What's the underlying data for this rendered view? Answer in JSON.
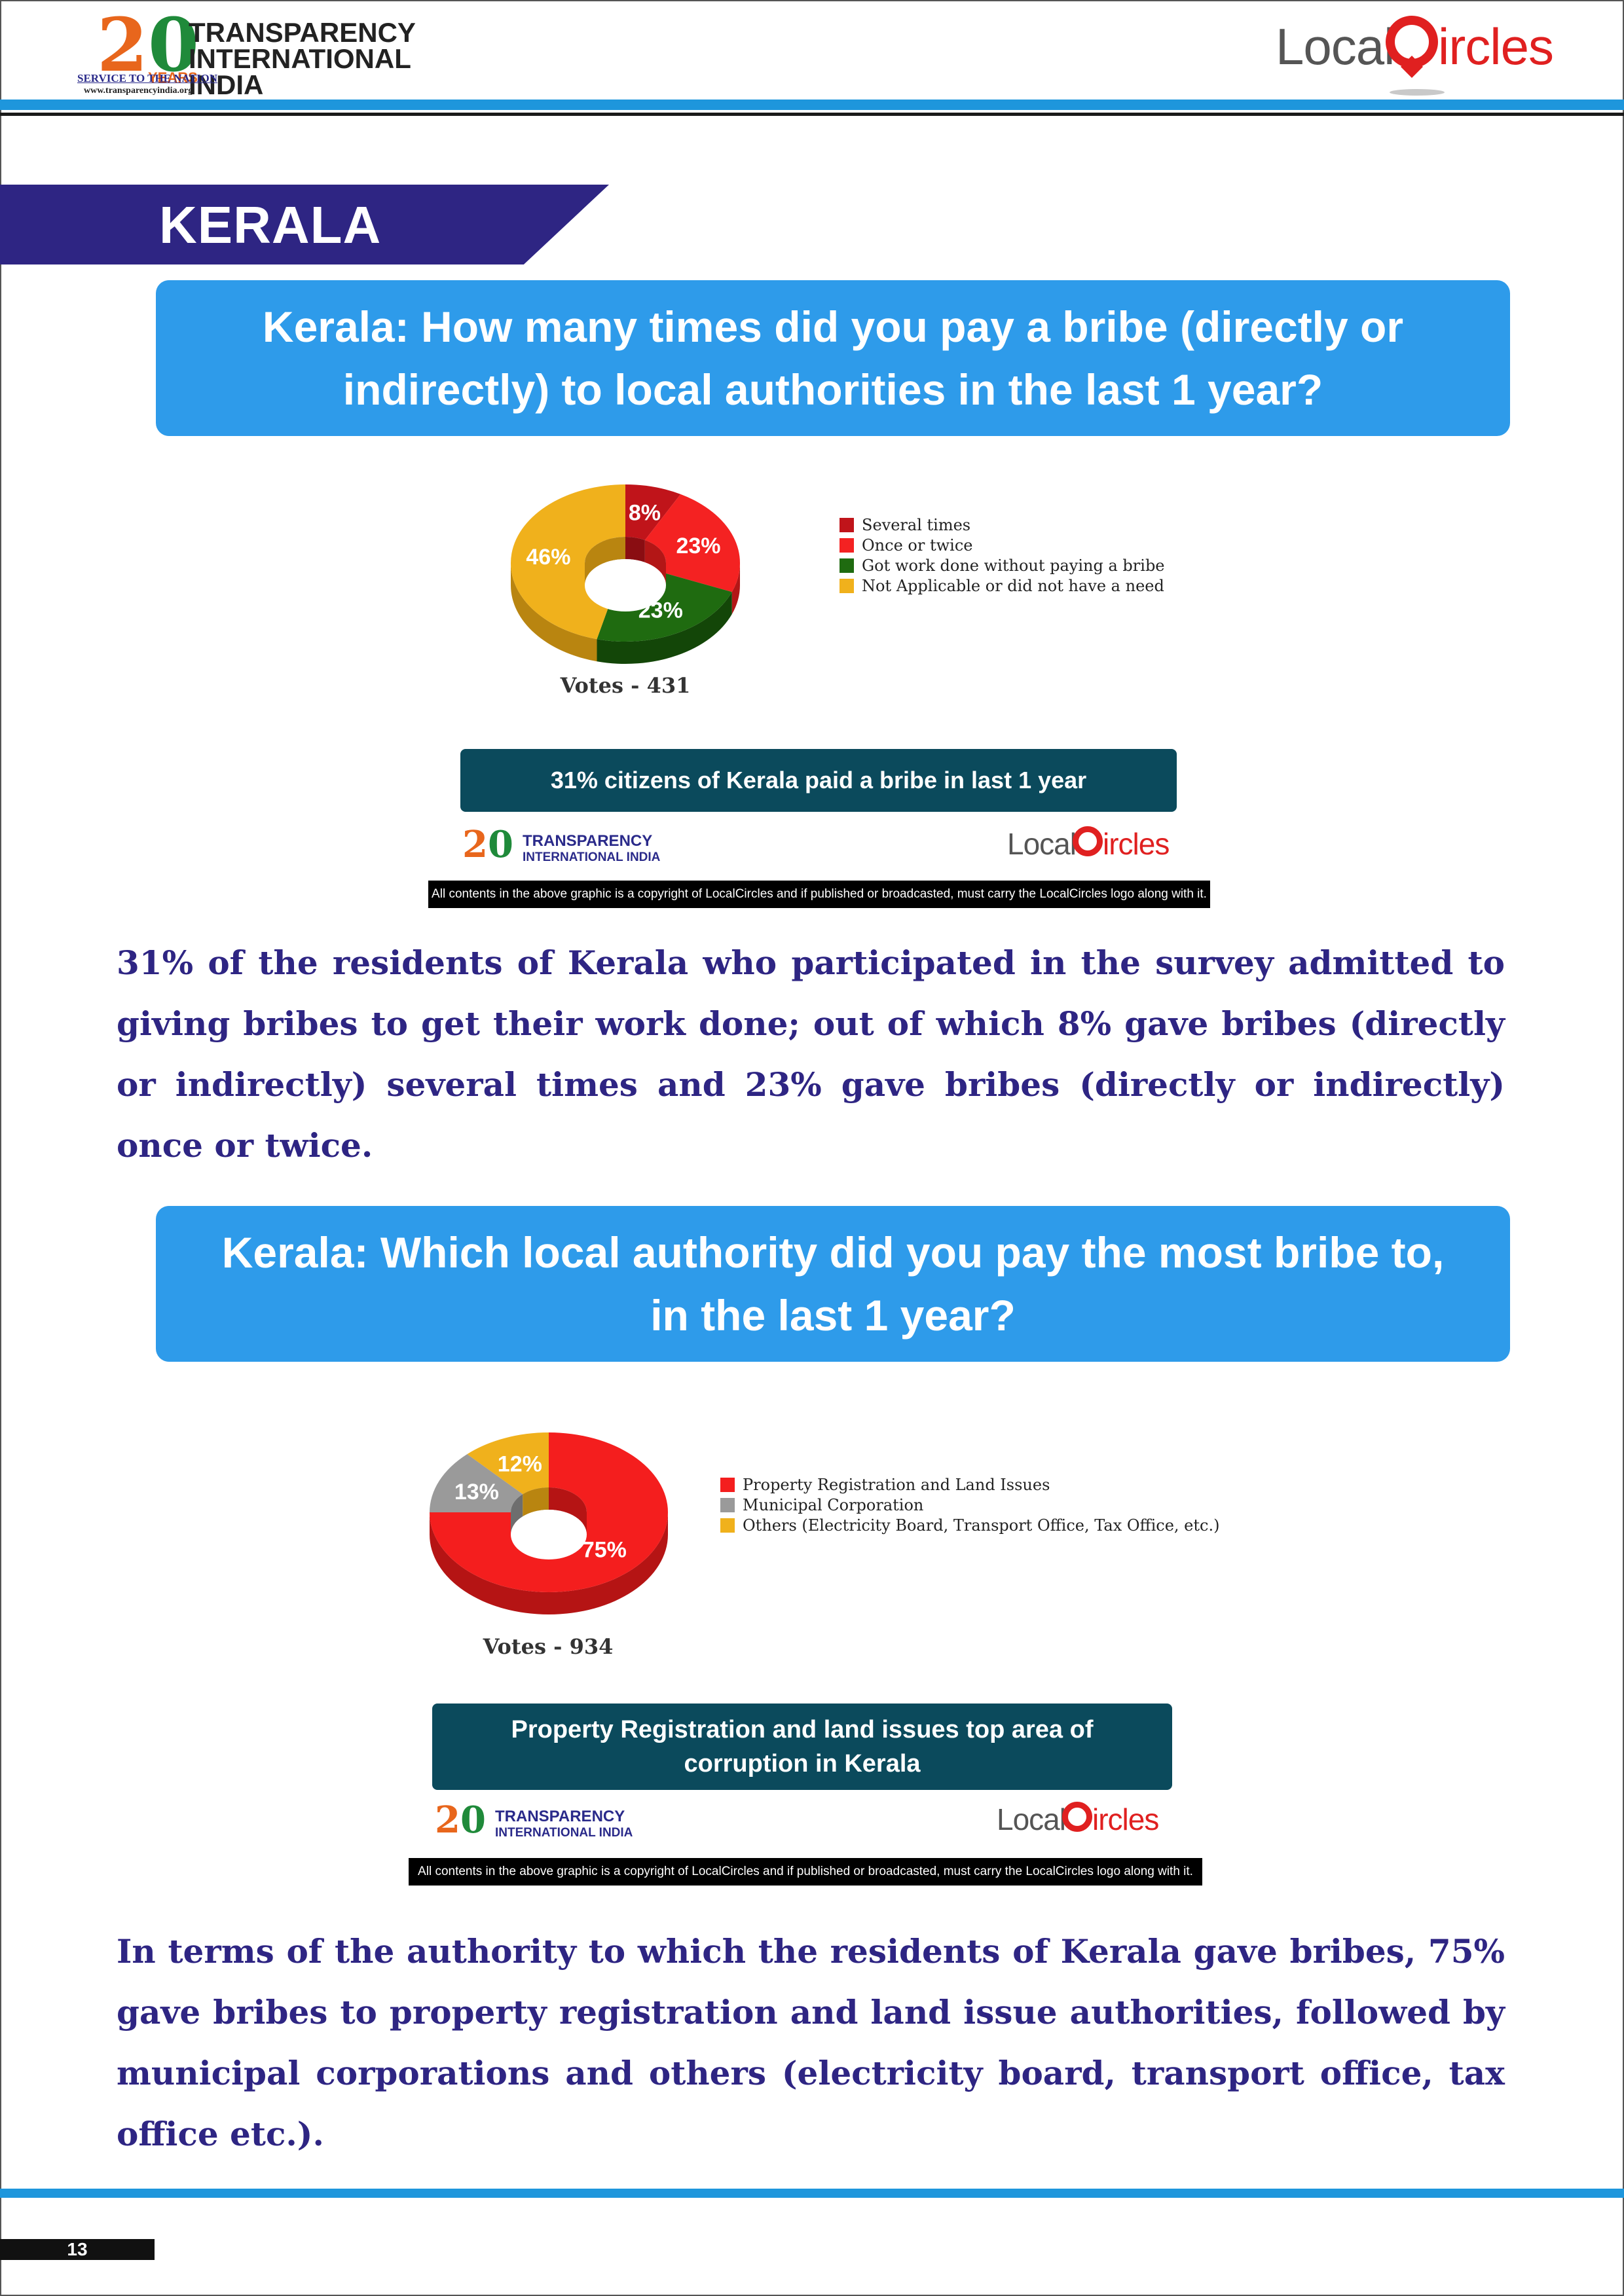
{
  "header": {
    "ti_logo": {
      "number": "20",
      "years": "YEARS",
      "name_line1": "TRANSPARENCY",
      "name_line2": "INTERNATIONAL INDIA",
      "tagline": "SERVICE TO THE NATION",
      "website": "www.transparencyindia.org"
    },
    "lc_logo": {
      "local": "Local",
      "ircles": "ircles"
    }
  },
  "section_title": "KERALA",
  "questions": [
    {
      "title": "Kerala: How many times did you pay a bribe (directly or indirectly) to local authorities in the last 1 year?",
      "votes": "Votes - 431",
      "finding": "31% citizens of Kerala paid a bribe in last 1 year",
      "copyright": "All contents in the above graphic is a copyright of LocalCircles and if published or broadcasted, must carry the LocalCircles logo along with it."
    },
    {
      "title": "Kerala: Which local authority did you pay the most bribe to, in the last 1 year?",
      "votes": "Votes - 934",
      "finding": "Property Registration and land issues top area of corruption in Kerala",
      "copyright": "All contents in the above graphic is a copyright of LocalCircles and if published or broadcasted, must carry the LocalCircles logo along with it."
    }
  ],
  "chart_data": [
    {
      "type": "pie",
      "categories": [
        "Several times",
        "Once or twice",
        "Got work done without paying a bribe",
        "Not Applicable or did not have a need"
      ],
      "values": [
        8,
        23,
        23,
        46
      ],
      "value_labels": [
        "8%",
        "23%",
        "23%",
        "46%"
      ],
      "colors": [
        "#c0141a",
        "#f42222",
        "#1f6b10",
        "#f0b11c"
      ],
      "side_colors": [
        "#8a0d12",
        "#b31616",
        "#134608",
        "#b98510"
      ],
      "legend_position": "right"
    },
    {
      "type": "pie",
      "categories": [
        "Property Registration and Land Issues",
        "Municipal Corporation",
        "Others (Electricity Board, Transport Office, Tax Office, etc.)"
      ],
      "values": [
        75,
        13,
        12
      ],
      "value_labels": [
        "75%",
        "13%",
        "12%"
      ],
      "colors": [
        "#f41e1e",
        "#9a9a9a",
        "#f0b11c"
      ],
      "side_colors": [
        "#b51414",
        "#6e6e6e",
        "#b98510"
      ],
      "legend_position": "right"
    }
  ],
  "paragraphs": [
    "31% of the residents of Kerala who participated in the survey admitted to giving bribes to get their work done; out of which 8% gave bribes (directly or indirectly) several times and 23% gave bribes (directly or indirectly) once or twice.",
    "In terms of the authority to which the residents of Kerala gave bribes, 75% gave bribes to property registration and land issue authorities, followed by municipal corporations and others (electricity board, transport office, tax office etc.)."
  ],
  "page_number": "13"
}
